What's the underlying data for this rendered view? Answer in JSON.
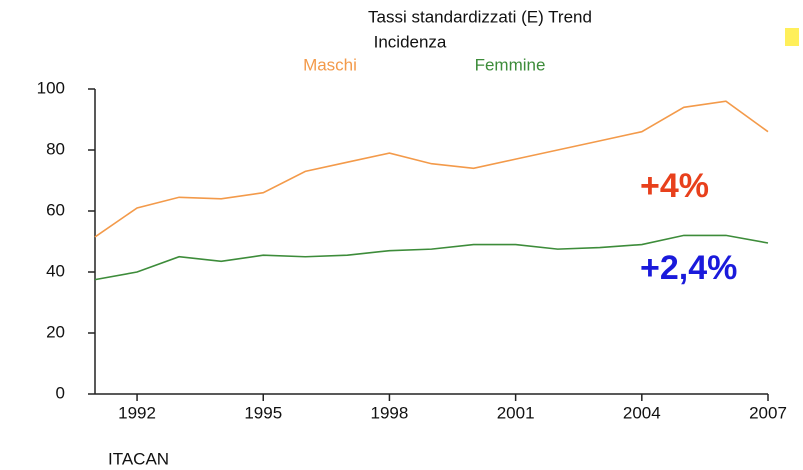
{
  "chart_data": {
    "type": "line",
    "title": "Tassi standardizzati (E) Trend",
    "subtitle": "Incidenza",
    "source": "ITACAN",
    "x": [
      1991,
      1992,
      1993,
      1994,
      1995,
      1996,
      1997,
      1998,
      1999,
      2000,
      2001,
      2002,
      2003,
      2004,
      2005,
      2006,
      2007
    ],
    "series": [
      {
        "name": "Maschi",
        "color": "#f39a4a",
        "values": [
          51.5,
          61,
          64.5,
          64,
          66,
          73,
          76,
          79,
          75.5,
          74,
          77,
          80,
          83,
          86,
          94,
          96,
          86
        ]
      },
      {
        "name": "Femmine",
        "color": "#3d8c3a",
        "values": [
          37.5,
          40,
          45,
          43.5,
          45.5,
          45,
          45.5,
          47,
          47.5,
          49,
          49,
          47.5,
          48,
          49,
          52,
          52,
          49.5
        ]
      }
    ],
    "annotations": [
      {
        "text": "+4%",
        "color": "#e8401c"
      },
      {
        "text": "+2,4%",
        "color": "#1a1adb"
      }
    ],
    "xlim": [
      1991,
      2007
    ],
    "xticks": [
      1992,
      1995,
      1998,
      2001,
      2004,
      2007
    ],
    "ylim": [
      0,
      100
    ],
    "yticks": [
      0,
      20,
      40,
      60,
      80,
      100
    ]
  }
}
